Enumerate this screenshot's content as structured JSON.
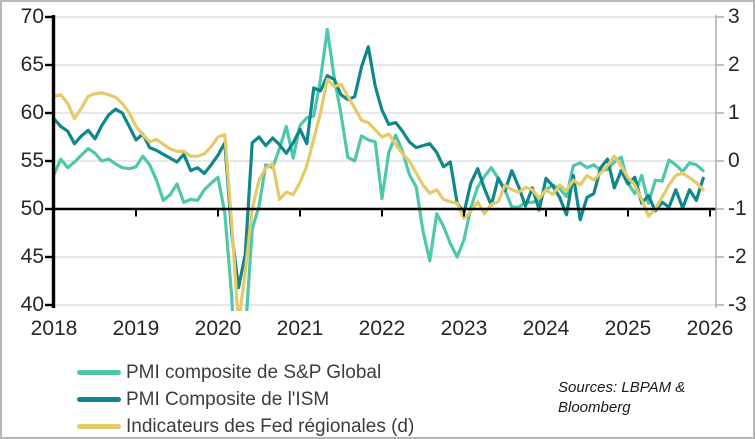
{
  "source_note": "Sources: LBPAM & Bloomberg",
  "colors": {
    "grid": "#d9d9d9",
    "axis_black": "#000000",
    "right_axis_gray": "#a9a9a9",
    "tick_text": "#262626",
    "legend_text": "#3d3d3d",
    "frame_border": "#b7b7b7",
    "background": "#ffffff"
  },
  "chart_data": {
    "type": "line",
    "title": "",
    "grid": true,
    "legend_position": "bottom-left",
    "x_axis": {
      "tick_labels": [
        "2018",
        "2019",
        "2020",
        "2021",
        "2022",
        "2023",
        "2024",
        "2025",
        "2026"
      ],
      "start_year": 2018,
      "frequency": "monthly"
    },
    "left_axis": {
      "min": 40,
      "max": 70,
      "tick_labels": [
        "70",
        "65",
        "60",
        "55",
        "50",
        "45",
        "40"
      ]
    },
    "right_axis": {
      "min": -3,
      "max": 3,
      "tick_labels": [
        "3",
        "2",
        "1",
        "0",
        "-1",
        "-2",
        "-3"
      ]
    },
    "baseline_left_value": 50,
    "series": [
      {
        "name": "PMI composite de S&P Global",
        "axis": "left",
        "color": "#4fc7aa",
        "values": [
          53.6,
          55.2,
          54.3,
          54.9,
          55.6,
          56.3,
          55.8,
          55.0,
          55.2,
          54.7,
          54.3,
          54.2,
          54.4,
          55.5,
          54.6,
          53.0,
          50.9,
          51.5,
          52.6,
          50.7,
          51.0,
          50.9,
          52.0,
          52.7,
          53.3,
          49.6,
          40.9,
          27.0,
          37.0,
          47.9,
          50.3,
          54.6,
          54.3,
          56.3,
          58.6,
          55.3,
          58.7,
          59.5,
          59.7,
          63.5,
          68.7,
          63.7,
          59.9,
          55.4,
          55.0,
          57.6,
          57.2,
          57.0,
          51.1,
          55.9,
          57.7,
          56.0,
          53.6,
          52.3,
          47.7,
          44.6,
          49.5,
          48.2,
          46.4,
          45.0,
          46.8,
          50.1,
          52.3,
          53.4,
          54.3,
          53.2,
          52.0,
          50.2,
          50.2,
          50.7,
          50.7,
          50.9,
          52.0,
          52.5,
          52.1,
          51.3,
          54.5,
          54.8,
          54.3,
          54.6,
          54.0,
          54.1,
          54.9,
          55.4,
          52.7,
          51.6,
          53.5,
          50.6,
          53.0,
          52.9,
          55.1,
          54.6,
          53.9,
          54.8,
          54.6,
          54.0
        ]
      },
      {
        "name": "PMI Composite de l'ISM",
        "axis": "left",
        "color": "#0f878b",
        "values": [
          59.4,
          58.6,
          58.1,
          56.8,
          57.6,
          58.2,
          57.3,
          58.7,
          59.8,
          60.4,
          60.0,
          58.6,
          57.2,
          57.8,
          56.4,
          56.1,
          55.7,
          55.3,
          54.9,
          55.7,
          54.0,
          54.3,
          53.7,
          54.6,
          55.6,
          56.9,
          47.5,
          41.8,
          45.3,
          56.9,
          57.5,
          56.6,
          57.4,
          56.7,
          55.8,
          56.9,
          58.3,
          56.8,
          62.6,
          62.3,
          63.9,
          63.5,
          61.9,
          61.4,
          61.7,
          64.8,
          66.9,
          62.8,
          60.3,
          58.8,
          59.0,
          58.1,
          57.0,
          56.4,
          56.6,
          56.8,
          55.9,
          54.4,
          54.9,
          50.6,
          49.6,
          52.7,
          54.2,
          52.1,
          50.4,
          53.2,
          51.9,
          54.0,
          52.3,
          50.3,
          52.2,
          49.9,
          53.2,
          52.4,
          51.2,
          49.4,
          53.5,
          48.9,
          51.2,
          51.6,
          54.3,
          55.2,
          52.2,
          54.0,
          52.6,
          53.3,
          50.6,
          51.4,
          49.8,
          50.7,
          50.2,
          52.0,
          50.1,
          52.0,
          50.9,
          53.2
        ]
      },
      {
        "name": "Indicateurs des Fed régionales (d)",
        "axis": "right",
        "color": "#e5ca69",
        "values": [
          1.35,
          1.38,
          1.2,
          0.88,
          1.1,
          1.35,
          1.4,
          1.42,
          1.38,
          1.33,
          1.2,
          1.0,
          0.72,
          0.55,
          0.4,
          0.45,
          0.35,
          0.25,
          0.2,
          0.2,
          0.1,
          0.1,
          0.15,
          0.3,
          0.5,
          0.55,
          -1.3,
          -3.4,
          -2.3,
          -1.0,
          -0.4,
          -0.15,
          -0.05,
          -0.8,
          -0.65,
          -0.7,
          -0.45,
          -0.1,
          0.45,
          1.0,
          1.7,
          1.55,
          1.6,
          1.35,
          1.1,
          0.85,
          0.8,
          0.65,
          0.5,
          0.56,
          0.35,
          0.15,
          0.0,
          -0.25,
          -0.5,
          -0.67,
          -0.6,
          -0.8,
          -0.85,
          -0.88,
          -1.2,
          -1.05,
          -0.85,
          -1.1,
          -0.9,
          -0.85,
          -0.5,
          -0.6,
          -0.65,
          -0.55,
          -0.6,
          -0.78,
          -0.6,
          -0.7,
          -0.5,
          -0.62,
          -0.4,
          -0.5,
          -0.3,
          -0.4,
          -0.25,
          -0.1,
          0.1,
          -0.1,
          -0.35,
          -0.5,
          -0.8,
          -1.15,
          -1.0,
          -0.75,
          -0.5,
          -0.3,
          -0.25,
          -0.35,
          -0.45,
          -0.6
        ]
      }
    ]
  }
}
